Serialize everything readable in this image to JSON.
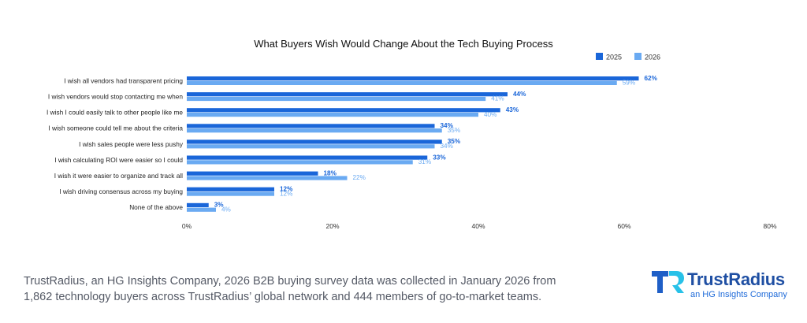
{
  "chart_data": {
    "type": "bar",
    "orientation": "horizontal",
    "title": "What Buyers Wish Would Change About the Tech Buying Process",
    "categories": [
      "I wish all vendors had transparent pricing",
      "I wish vendors would stop contacting me when",
      "I wish I could easily talk to other people like me",
      "I wish someone could tell me about the criteria",
      "I wish sales people were less pushy",
      "I wish calculating ROI were easier so I could",
      "I wish it were easier to organize and track all",
      "I wish driving consensus across my buying",
      "None of the above"
    ],
    "series": [
      {
        "name": "2025",
        "color": "#1a66d9",
        "values": [
          62,
          44,
          43,
          34,
          35,
          33,
          18,
          12,
          3
        ],
        "labels": [
          "62%",
          "44%",
          "43%",
          "34%",
          "35%",
          "33%",
          "18%",
          "12%",
          "3%"
        ]
      },
      {
        "name": "2026",
        "color": "#6aaaf2",
        "values": [
          59,
          41,
          40,
          35,
          34,
          31,
          22,
          12,
          4
        ],
        "labels": [
          "59%",
          "41%",
          "40%",
          "35%",
          "34%",
          "31%",
          "22%",
          "12%",
          "4%"
        ]
      }
    ],
    "xlim": [
      0,
      80
    ],
    "xticks": [
      0,
      20,
      40,
      60,
      80
    ],
    "xtick_labels": [
      "0%",
      "20%",
      "40%",
      "60%",
      "80%"
    ],
    "grid": false,
    "legend_position": "top-right"
  },
  "footer": {
    "line1": "TrustRadius, an HG Insights Company, 2026 B2B buying survey data was collected in January 2026 from",
    "line2": "1,862 technology buyers across TrustRadius’ global network and 444 members of go-to-market teams."
  },
  "logo": {
    "brand": "TrustRadius",
    "tagline": "an HG Insights Company"
  }
}
